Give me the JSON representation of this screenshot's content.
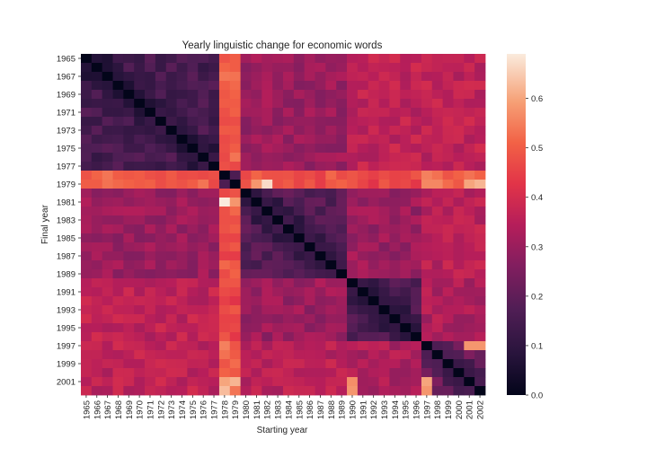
{
  "chart_data": {
    "type": "heatmap",
    "title": "Yearly linguistic change for economic words",
    "xlabel": "Starting year",
    "ylabel": "Final year",
    "years": [
      1965,
      1966,
      1967,
      1968,
      1969,
      1970,
      1971,
      1972,
      1973,
      1974,
      1975,
      1976,
      1977,
      1978,
      1979,
      1980,
      1981,
      1982,
      1983,
      1984,
      1985,
      1986,
      1987,
      1988,
      1989,
      1990,
      1991,
      1992,
      1993,
      1994,
      1995,
      1996,
      1997,
      1998,
      1999,
      2000,
      2001,
      2002
    ],
    "x_tick_labels": [
      "1965",
      "1966",
      "1967",
      "1968",
      "1969",
      "1970",
      "1971",
      "1972",
      "1973",
      "1974",
      "1975",
      "1976",
      "1977",
      "1978",
      "1979",
      "1980",
      "1981",
      "1982",
      "1983",
      "1984",
      "1985",
      "1986",
      "1987",
      "1988",
      "1989",
      "1990",
      "1991",
      "1992",
      "1993",
      "1994",
      "1995",
      "1996",
      "1997",
      "1998",
      "1999",
      "2000",
      "2001",
      "2002"
    ],
    "y_tick_labels": [
      "1965",
      "1967",
      "1969",
      "1971",
      "1973",
      "1975",
      "1977",
      "1979",
      "1981",
      "1983",
      "1985",
      "1987",
      "1989",
      "1991",
      "1993",
      "1995",
      "1997",
      "1999",
      "2001"
    ],
    "y_tick_years": [
      1965,
      1967,
      1969,
      1971,
      1973,
      1975,
      1977,
      1979,
      1981,
      1983,
      1985,
      1987,
      1989,
      1991,
      1993,
      1995,
      1997,
      1999,
      2001
    ],
    "colorbar": {
      "min": 0.0,
      "max": 0.69,
      "ticks": [
        0.0,
        0.1,
        0.2,
        0.3,
        0.4,
        0.5,
        0.6
      ],
      "tick_labels": [
        "0.0",
        "0.1",
        "0.2",
        "0.3",
        "0.4",
        "0.5",
        "0.6"
      ],
      "colormap": "rocket"
    },
    "groups": {
      "early": [
        1965,
        1966,
        1967,
        1968,
        1969,
        1970,
        1971,
        1972,
        1973,
        1974,
        1975,
        1976,
        1977
      ],
      "transition": [
        1978,
        1979
      ],
      "mid": [
        1980,
        1981,
        1982,
        1983,
        1984,
        1985,
        1986,
        1987,
        1988,
        1989
      ],
      "late": [
        1990,
        1991,
        1992,
        1993,
        1994,
        1995,
        1996
      ],
      "recent": [
        1997,
        1998,
        1999,
        2000,
        2001,
        2002
      ]
    },
    "group_values": {
      "early_early": 0.15,
      "early_transition": 0.5,
      "early_mid": 0.3,
      "early_late": 0.36,
      "early_recent": 0.36,
      "transition_transition": 0.3,
      "transition_mid": 0.48,
      "transition_late": 0.46,
      "transition_recent": 0.52,
      "mid_mid": 0.18,
      "mid_late": 0.3,
      "mid_recent": 0.35,
      "late_late": 0.16,
      "late_recent": 0.33,
      "recent_recent": 0.22
    },
    "exceptions": [
      {
        "x": 1978,
        "y": 1981,
        "value": 0.69
      },
      {
        "x": 1979,
        "y": 1981,
        "value": 0.58
      },
      {
        "x": 1981,
        "y": 1979,
        "value": 0.58
      },
      {
        "x": 1982,
        "y": 1979,
        "value": 0.67
      },
      {
        "x": 2002,
        "y": 1979,
        "value": 0.62
      },
      {
        "x": 2001,
        "y": 1979,
        "value": 0.6
      },
      {
        "x": 1997,
        "y": 1979,
        "value": 0.56
      },
      {
        "x": 1998,
        "y": 1979,
        "value": 0.56
      },
      {
        "x": 1978,
        "y": 2001,
        "value": 0.6
      },
      {
        "x": 1979,
        "y": 2001,
        "value": 0.62
      },
      {
        "x": 1978,
        "y": 2002,
        "value": 0.63
      },
      {
        "x": 1997,
        "y": 2001,
        "value": 0.6
      },
      {
        "x": 1997,
        "y": 2002,
        "value": 0.58
      },
      {
        "x": 2001,
        "y": 1997,
        "value": 0.58
      },
      {
        "x": 2002,
        "y": 1997,
        "value": 0.58
      },
      {
        "x": 1990,
        "y": 2001,
        "value": 0.57
      },
      {
        "x": 1990,
        "y": 2002,
        "value": 0.58
      }
    ]
  }
}
